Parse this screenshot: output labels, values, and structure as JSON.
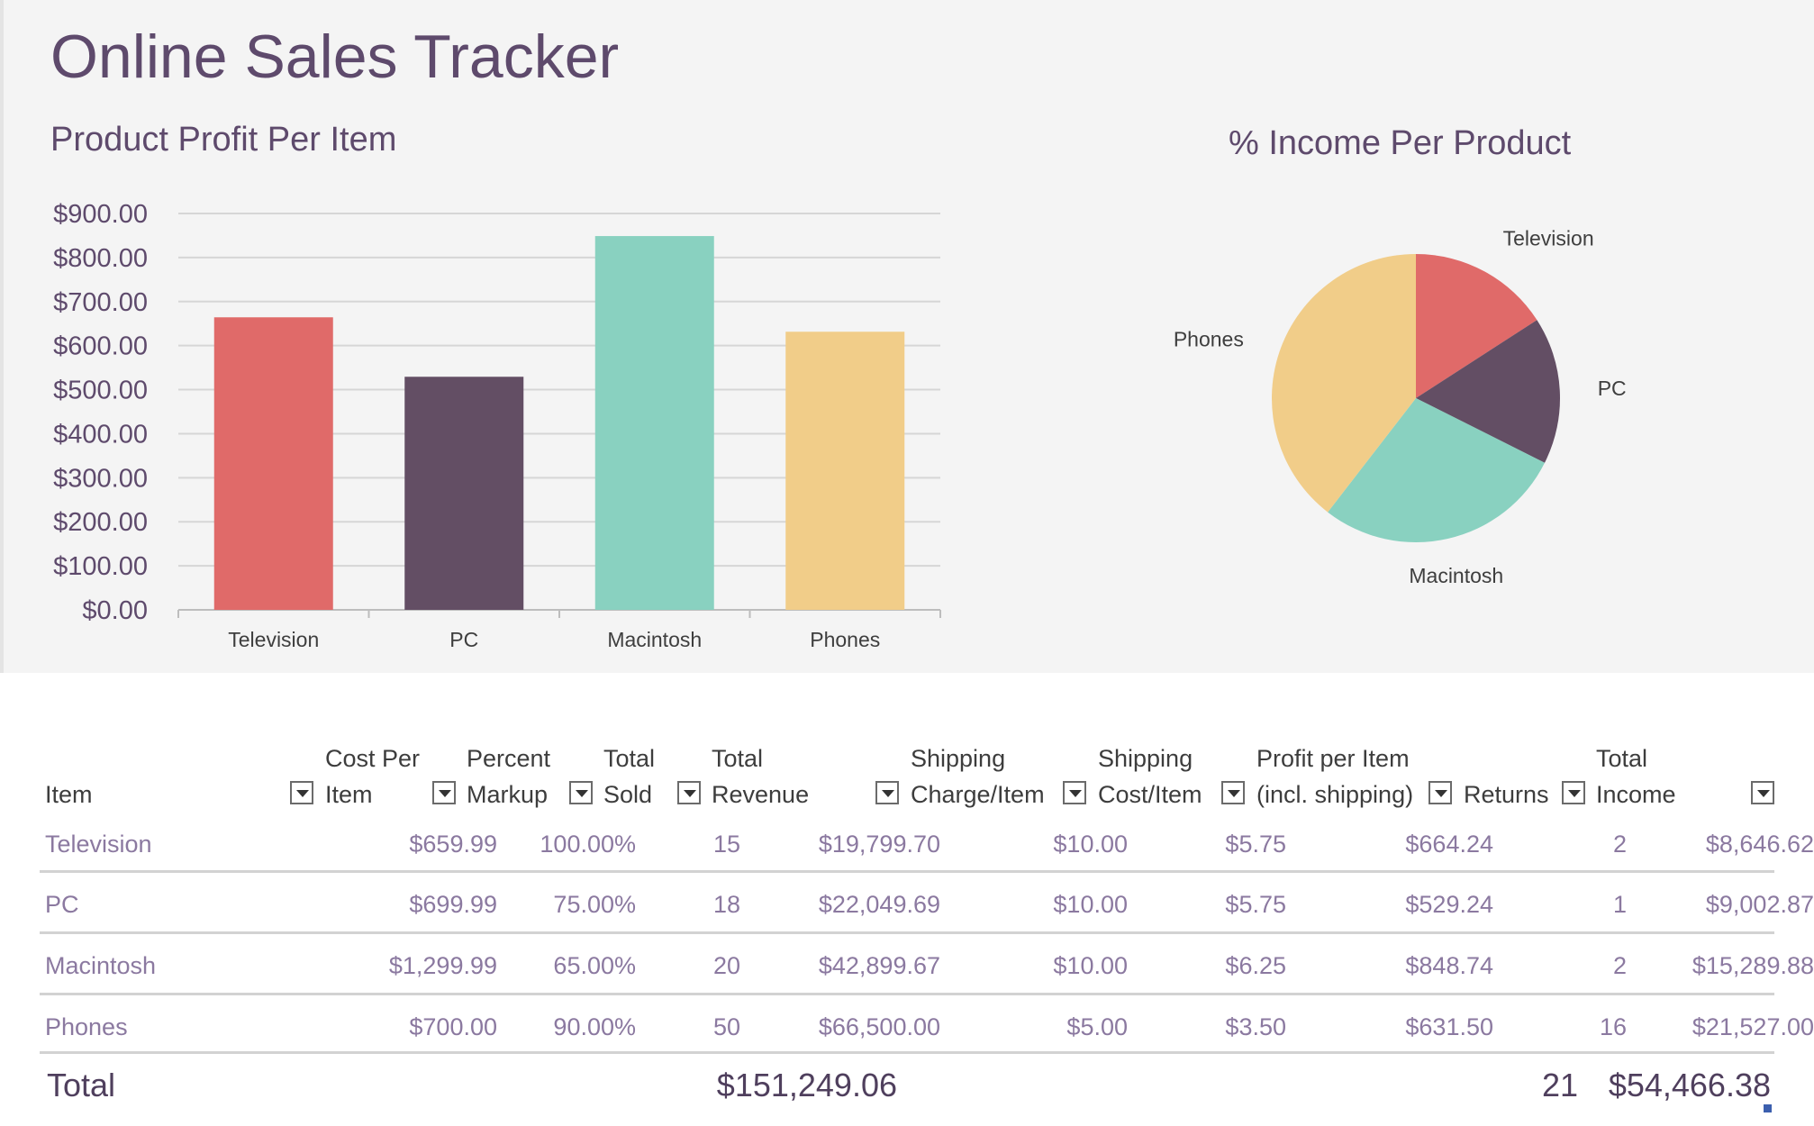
{
  "header": {
    "title": "Online Sales Tracker"
  },
  "bar_chart": {
    "title": "Product Profit Per Item"
  },
  "pie_chart": {
    "title": "% Income Per Product"
  },
  "colors": {
    "television": "#e06a69",
    "pc": "#634e64",
    "macintosh": "#89d1c0",
    "phones": "#f1cd89"
  },
  "chart_data": [
    {
      "type": "bar",
      "title": "Product Profit Per Item",
      "categories": [
        "Television",
        "PC",
        "Macintosh",
        "Phones"
      ],
      "values": [
        664.24,
        529.24,
        848.74,
        631.5
      ],
      "ylim": [
        0,
        900
      ],
      "yticks": [
        "$0.00",
        "$100.00",
        "$200.00",
        "$300.00",
        "$400.00",
        "$500.00",
        "$600.00",
        "$700.00",
        "$800.00",
        "$900.00"
      ],
      "xlabel": "",
      "ylabel": "",
      "grid": true
    },
    {
      "type": "pie",
      "title": "% Income Per Product",
      "labels": [
        "Television",
        "PC",
        "Macintosh",
        "Phones"
      ],
      "values": [
        8646.62,
        9002.87,
        15289.88,
        21527.0
      ]
    }
  ],
  "table": {
    "headers": [
      {
        "line1": "",
        "line2": "Item"
      },
      {
        "line1": "Cost Per",
        "line2": "Item"
      },
      {
        "line1": "Percent",
        "line2": "Markup"
      },
      {
        "line1": "Total",
        "line2": "Sold"
      },
      {
        "line1": "Total",
        "line2": "Revenue"
      },
      {
        "line1": "Shipping",
        "line2": "Charge/Item"
      },
      {
        "line1": "Shipping",
        "line2": "Cost/Item"
      },
      {
        "line1": "Profit per Item",
        "line2": "(incl. shipping)"
      },
      {
        "line1": "",
        "line2": "Returns"
      },
      {
        "line1": "Total",
        "line2": "Income"
      }
    ],
    "rows": [
      [
        "Television",
        "$659.99",
        "100.00%",
        "15",
        "$19,799.70",
        "$10.00",
        "$5.75",
        "$664.24",
        "2",
        "$8,646.62"
      ],
      [
        "PC",
        "$699.99",
        "75.00%",
        "18",
        "$22,049.69",
        "$10.00",
        "$5.75",
        "$529.24",
        "1",
        "$9,002.87"
      ],
      [
        "Macintosh",
        "$1,299.99",
        "65.00%",
        "20",
        "$42,899.67",
        "$10.00",
        "$6.25",
        "$848.74",
        "2",
        "$15,289.88"
      ],
      [
        "Phones",
        "$700.00",
        "90.00%",
        "50",
        "$66,500.00",
        "$5.00",
        "$3.50",
        "$631.50",
        "16",
        "$21,527.00"
      ]
    ],
    "total": {
      "label": "Total",
      "revenue": "$151,249.06",
      "returns": "21",
      "income": "$54,466.38"
    }
  }
}
